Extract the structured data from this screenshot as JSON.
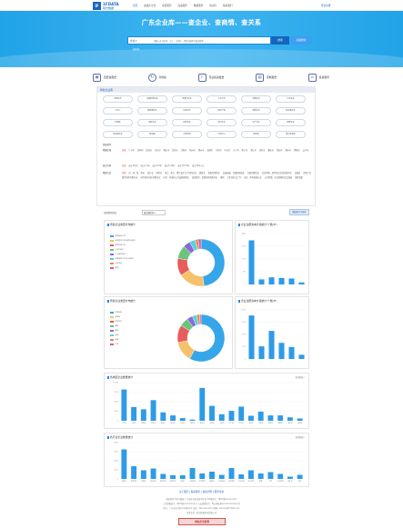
{
  "nav": {
    "logo_mark": "IF",
    "logo_text": "1FDATA",
    "logo_sub": "韩方数据",
    "links": [
      "首页",
      "政策库平台",
      "项目服务",
      "商品服务",
      "数据服务",
      "知识库",
      "联系我们"
    ],
    "login": "登录注册"
  },
  "banner": {
    "title": "广东企业库——查企业、查商情、查关系",
    "select": "企业 ▾",
    "placeholder": "请输入企业名称、法人、注册号、经营范围等关键词搜索",
    "search_btn": "搜索",
    "adv_btn": "高级搜索",
    "hot": "热搜词："
  },
  "tiles": [
    {
      "icon": "▣",
      "label": "四经营报告"
    },
    {
      "icon": "↻",
      "label": "查找投"
    },
    {
      "icon": "✓",
      "label": "专业投资报告"
    },
    {
      "icon": "▤",
      "label": "定制报告"
    },
    {
      "icon": "⌂",
      "label": "投资顾问"
    }
  ],
  "filter": {
    "title": "特色企业库",
    "pills": [
      "高新技术",
      "专精特新企业",
      "省重点企业",
      "上市公司",
      "高新技术",
      "行业龙头",
      "小巨人",
      "独角兽企业",
      "外资企业",
      "知识产权",
      "创新企业",
      "科技型企业",
      "科创板",
      "国有企业",
      "民营企业",
      "出口企业",
      "生产企业",
      "服务企业",
      "科技型企业",
      "孵化器",
      "众创空间",
      "工程中心",
      "研究院",
      "重点实验室"
    ],
    "sub_title": "筛选条件",
    "rows": [
      {
        "key": "所属区域",
        "values": [
          "全部",
          "广州市",
          "深圳市",
          "珠海市",
          "汕头市",
          "佛山市",
          "韶关市",
          "河源市",
          "梅州市",
          "惠州市",
          "汕尾市",
          "东莞市",
          "中山市",
          "江门市",
          "阳江市",
          "湛江市",
          "茂名市",
          "肇庆市",
          "清远市",
          "潮州市",
          "揭阳市",
          "云浮市"
        ]
      },
      {
        "key": "成立时间",
        "values": [
          "全部",
          "成立1年内",
          "成立1-3年",
          "成立3-5年",
          "成立5-10年",
          "成立10-15年",
          "成立15年以上"
        ]
      },
      {
        "key": "所属行业",
        "values": [
          "全部",
          "农、林、牧、渔业",
          "采矿业",
          "制造业",
          "电力、热力、燃气及水生产和供应业",
          "建筑业",
          "批发和零售业",
          "交通运输、仓储和邮政业",
          "住宿和餐饮业",
          "信息传输、软件和信息技术服务业",
          "金融业",
          "房地产业",
          "租赁和商务服务业",
          "科学研究和技术服务业",
          "水利、环境和公共设施管理业",
          "居民服务、修理和其他服务业",
          "教育",
          "卫生和社会工作",
          "文化、体育和娱乐业",
          "公共管理、社会保障和社会组织",
          "国际组织"
        ]
      }
    ],
    "selected": "全部"
  },
  "toolbar": {
    "label": "共检索到企业",
    "sort": "按注册时间 ▾",
    "export": "数据统计可视化"
  },
  "panels": {
    "p1_title": "所属企业类型分布统计",
    "p2_title": "企业注册资本分段统计(个数/户)",
    "p3_title": "所属企业类型分布统计",
    "p4_title": "企业注册资本分段统计(个数/户)",
    "p5_title": "各地区企业数量统计",
    "p6_title": "各行业企业数量统计",
    "more": "更多数据 ›"
  },
  "legend_items": [
    "有限责任公司",
    "有限责任公司(自然人独资)",
    "股份有限公司",
    "个体工商户",
    "个人独资企业",
    "有限责任公司(法人独资)",
    "合伙企业",
    "其他",
    "外商投资企业",
    "国有企业"
  ],
  "chart_data": [
    {
      "type": "pie",
      "title": "所属企业类型分布统计",
      "labels": [
        "有限责任公司",
        "有限责任公司(自然人独资)",
        "股份有限公司",
        "个体工商户",
        "个人独资企业",
        "有限责任公司(法人独资)",
        "合伙企业",
        "其他"
      ],
      "values": [
        48,
        18,
        12,
        9,
        5,
        4,
        2,
        2
      ],
      "colors": [
        "#35a6ea",
        "#f5c26b",
        "#e85c5c",
        "#6bc47a",
        "#8a6ad8",
        "#58d0e0",
        "#f28a3c",
        "#c95fb6"
      ]
    },
    {
      "type": "bar",
      "title": "企业注册资本分段统计(个数/户)",
      "categories": [
        "0-100万",
        "100-200万",
        "200-500万",
        "500-1000万",
        "1000-5000万",
        "5000万以上"
      ],
      "values": [
        2600,
        300,
        420,
        380,
        350,
        120
      ],
      "ylim": [
        0,
        3000
      ]
    },
    {
      "type": "pie",
      "title": "所属企业类型分布统计",
      "labels": [
        "内资企业",
        "港澳台",
        "外资企业",
        "国有",
        "集体",
        "其他",
        "私营",
        "个体"
      ],
      "values": [
        58,
        14,
        12,
        6,
        4,
        3,
        2,
        1
      ],
      "colors": [
        "#35a6ea",
        "#f5c26b",
        "#e85c5c",
        "#6bc47a",
        "#8a6ad8",
        "#58d0e0",
        "#f28a3c",
        "#c95fb6"
      ]
    },
    {
      "type": "bar",
      "title": "企业注册资本分段统计(个数/户)",
      "categories": [
        "0-100万",
        "100-200万",
        "200-500万",
        "500-1000万",
        "1000-5000万",
        "5000万以上"
      ],
      "values": [
        3100,
        900,
        2000,
        1150,
        850,
        300
      ],
      "ylim": [
        0,
        3500
      ]
    },
    {
      "type": "bar",
      "title": "各地区企业数量统计",
      "categories": [
        "广州市",
        "深圳市",
        "珠海市",
        "汕头市",
        "佛山市",
        "韶关市",
        "河源市",
        "梅州市",
        "惠州市",
        "东莞市",
        "中山市",
        "江门市",
        "阳江市",
        "湛江市",
        "茂名市",
        "肇庆市",
        "清远市",
        "潮州市",
        "揭阳市"
      ],
      "values": [
        8200,
        3600,
        3000,
        5400,
        2200,
        1400,
        700,
        300,
        8600,
        3900,
        1700,
        2600,
        3700,
        1300,
        2400,
        1400,
        1400,
        900,
        600
      ],
      "ylim": [
        0,
        10000
      ]
    },
    {
      "type": "bar",
      "title": "各行业企业数量统计",
      "categories": [
        "制造业",
        "批发零售",
        "建筑业",
        "信息技术",
        "租赁商务",
        "科研技术",
        "房地产",
        "交通运输",
        "住宿餐饮",
        "金融业",
        "农林牧渔",
        "居民服务",
        "文化体育",
        "电力燃气",
        "教育",
        "卫生",
        "水利环境",
        "采矿业",
        "其他"
      ],
      "values": [
        6500,
        2800,
        1900,
        2300,
        1100,
        800,
        800,
        2400,
        1200,
        1600,
        900,
        2400,
        1000,
        1900,
        1200,
        1500,
        1100,
        500,
        900
      ],
      "ylim": [
        0,
        8000
      ]
    }
  ],
  "footer": {
    "links": "关于我们 | 联系我们 | 使用声明 | 服务条款",
    "line1": "版权所有©韩方数据  广东省企业信息查询平台  ICP备案号：粤ICP备xxxxxxxx号",
    "line2": "工信部备案号：粤ICP备xxxxxxxx号-1  公安部备案号：粤公网安备xxxxxxxxxxxxxx号",
    "line3": "地址：广州市天河区xxxx路xx号  电话：020-xxxxxxxx  邮箱：service@1fdata.com",
    "line4": "技术支持：韩方数据科技有限公司",
    "badge": "网站安全检测"
  }
}
